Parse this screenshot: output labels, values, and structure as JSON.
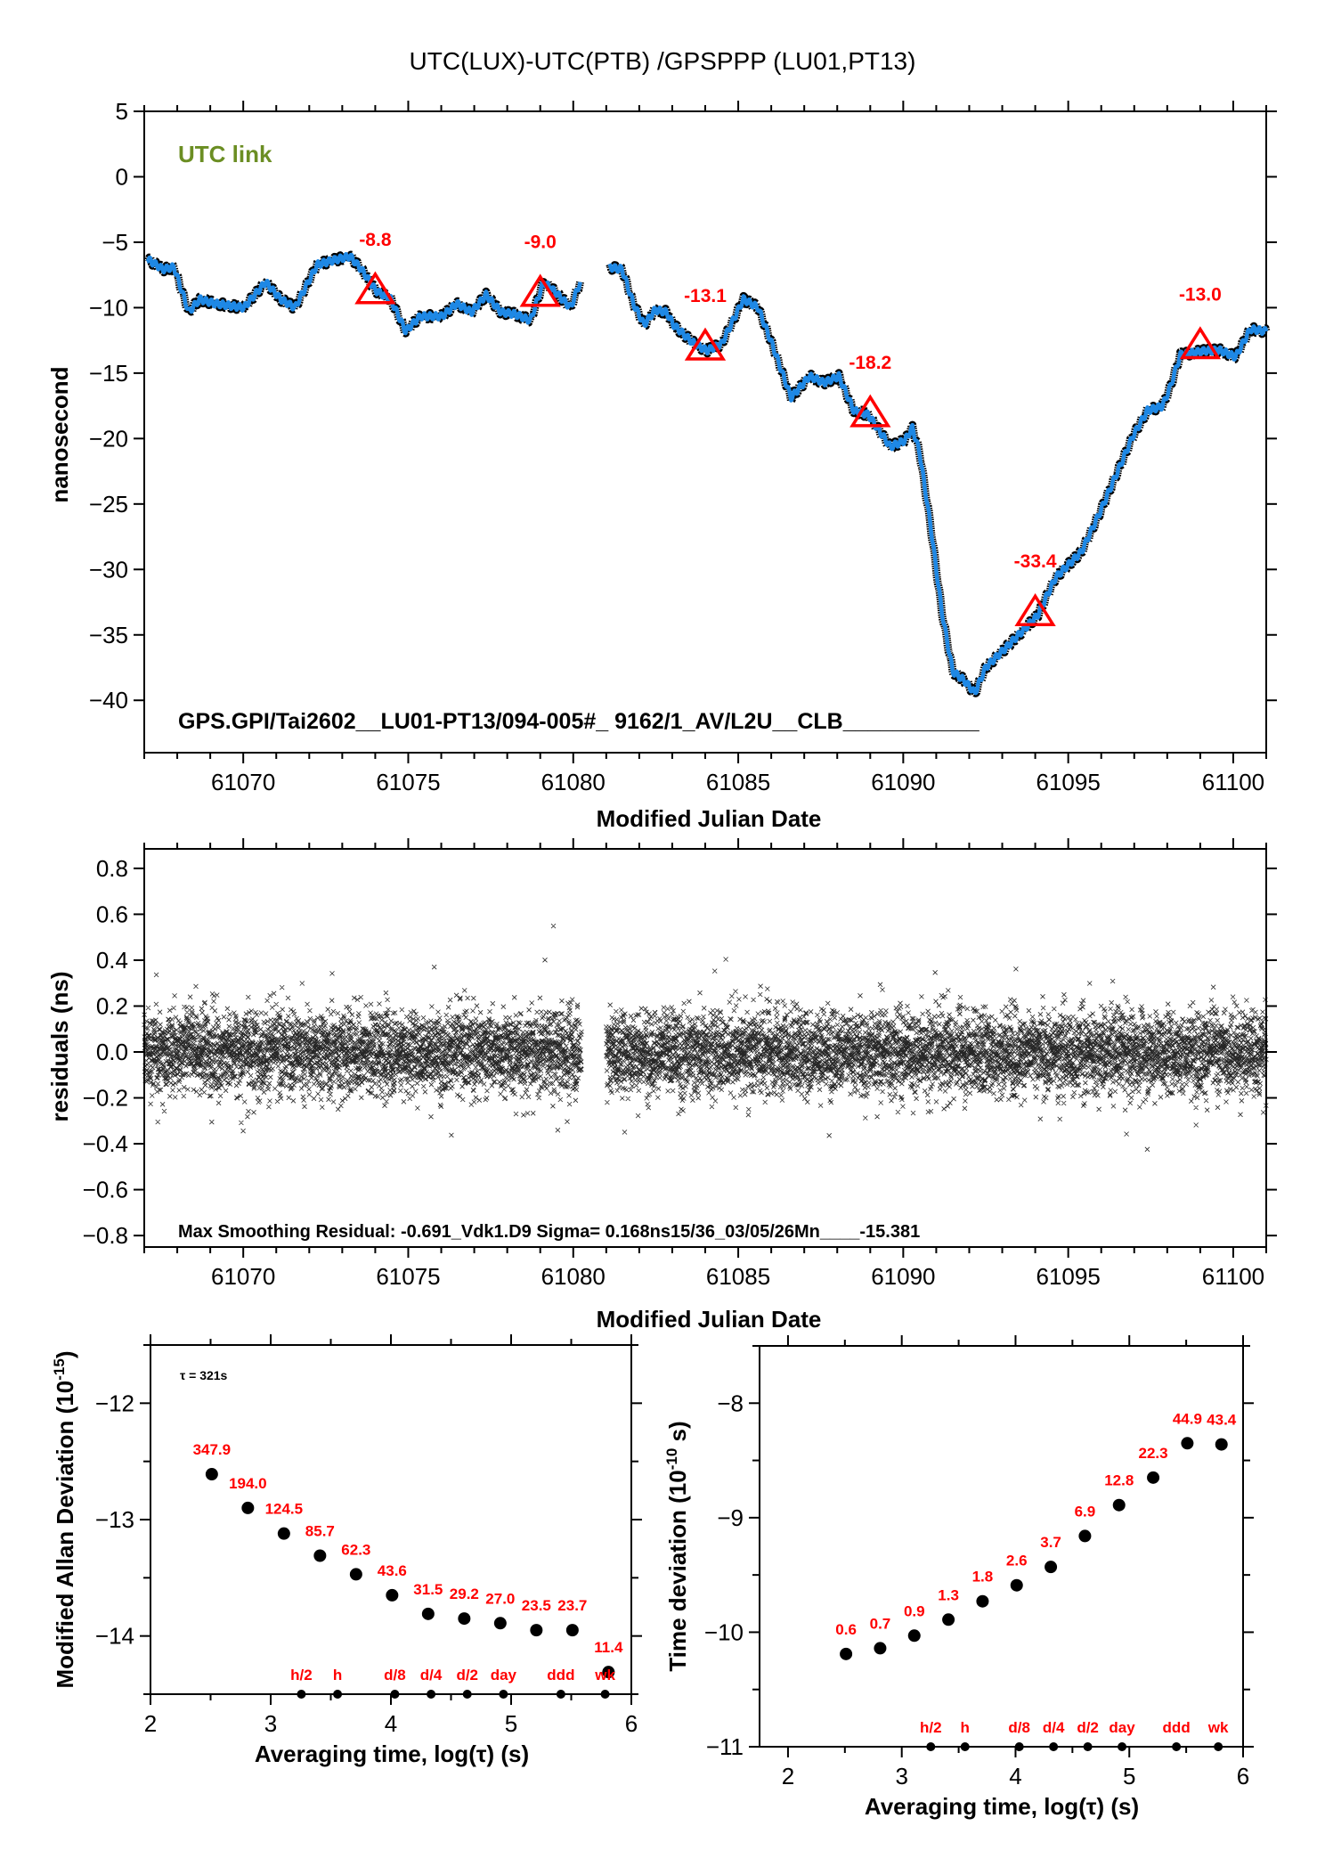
{
  "page_title": "UTC(LUX)-UTC(PTB)  /GPSPPP  (LU01,PT13)",
  "colors": {
    "series_line": "#1e88e5",
    "raw_points": "#000000",
    "markers": "#ff0000",
    "link_label": "#6b8e23"
  },
  "chart_data": [
    {
      "id": "time-series",
      "type": "line",
      "title": "UTC(LUX)-UTC(PTB)  /GPSPPP  (LU01,PT13)",
      "xlabel": "Modified Julian Date",
      "ylabel": "nanosecond",
      "xlim": [
        61067,
        61101
      ],
      "ylim": [
        -44,
        5
      ],
      "xticks": [
        61070,
        61075,
        61080,
        61085,
        61090,
        61095,
        61100
      ],
      "xtick_labels": [
        "61070",
        "61075",
        "61080",
        "61085",
        "61090",
        "61095",
        "61100"
      ],
      "yticks": [
        5,
        0,
        -5,
        -10,
        -15,
        -20,
        -25,
        -30,
        -35,
        -40
      ],
      "ytick_labels": [
        "5",
        "0",
        "−5",
        "−10",
        "−15",
        "−20",
        "−25",
        "−30",
        "−35",
        "−40"
      ],
      "annotation_top": "UTC link",
      "annotation_bottom": "GPS.GPI/Tai2602__LU01-PT13/094-005#_  9162/1_AV/L2U__CLB___________",
      "segments": [
        [
          [
            61067.08,
            -6.25
          ],
          [
            61067.57,
            -7.07
          ],
          [
            61067.9,
            -6.9
          ],
          [
            61068.35,
            -10.34
          ],
          [
            61068.68,
            -9.35
          ],
          [
            61069.13,
            -9.68
          ],
          [
            61070.02,
            -10.0
          ],
          [
            61070.68,
            -8.04
          ],
          [
            61071.13,
            -9.35
          ],
          [
            61071.57,
            -10.0
          ],
          [
            61072.24,
            -6.72
          ],
          [
            61072.69,
            -6.4
          ],
          [
            61073.24,
            -6.08
          ],
          [
            61073.58,
            -7.07
          ],
          [
            61074.02,
            -8.7
          ],
          [
            61074.47,
            -9.35
          ],
          [
            61074.92,
            -11.8
          ],
          [
            61075.36,
            -10.66
          ],
          [
            61076.03,
            -10.66
          ],
          [
            61076.47,
            -9.68
          ],
          [
            61076.92,
            -10.34
          ],
          [
            61077.36,
            -9.02
          ],
          [
            61077.81,
            -10.34
          ],
          [
            61078.25,
            -10.5
          ],
          [
            61078.7,
            -10.99
          ],
          [
            61079.1,
            -8.04
          ],
          [
            61079.48,
            -8.86
          ],
          [
            61079.92,
            -10.0
          ],
          [
            61080.21,
            -8.04
          ]
        ],
        [
          [
            61081.1,
            -6.9
          ],
          [
            61081.48,
            -7.07
          ],
          [
            61081.82,
            -9.68
          ],
          [
            61082.15,
            -11.31
          ],
          [
            61082.48,
            -10.17
          ],
          [
            61082.82,
            -10.34
          ],
          [
            61083.04,
            -11.31
          ],
          [
            61083.6,
            -12.62
          ],
          [
            61084.04,
            -13.28
          ],
          [
            61084.49,
            -12.79
          ],
          [
            61085.16,
            -9.35
          ],
          [
            61085.6,
            -10.0
          ],
          [
            61086.05,
            -12.95
          ],
          [
            61086.6,
            -16.87
          ],
          [
            61087.16,
            -15.24
          ],
          [
            61087.6,
            -15.73
          ],
          [
            61088.05,
            -15.24
          ],
          [
            61088.5,
            -17.86
          ],
          [
            61088.94,
            -18.18
          ],
          [
            61089.61,
            -20.63
          ],
          [
            61090.05,
            -20.15
          ],
          [
            61090.28,
            -19.17
          ],
          [
            61090.5,
            -21.13
          ],
          [
            61090.83,
            -26.68
          ],
          [
            61091.17,
            -33.23
          ],
          [
            61091.5,
            -37.8
          ],
          [
            61091.84,
            -38.46
          ],
          [
            61092.17,
            -39.44
          ],
          [
            61092.5,
            -37.48
          ],
          [
            61093.17,
            -35.84
          ],
          [
            61094.06,
            -33.55
          ],
          [
            61094.62,
            -30.61
          ],
          [
            61095.4,
            -28.65
          ],
          [
            61095.95,
            -25.7
          ],
          [
            61096.51,
            -22.44
          ],
          [
            61096.96,
            -19.82
          ],
          [
            61097.4,
            -17.86
          ],
          [
            61097.85,
            -17.53
          ],
          [
            61098.07,
            -16.22
          ],
          [
            61098.4,
            -13.6
          ],
          [
            61099.18,
            -13.28
          ],
          [
            61099.63,
            -13.28
          ],
          [
            61100.07,
            -13.77
          ],
          [
            61100.52,
            -11.64
          ],
          [
            61101.0,
            -11.8
          ]
        ]
      ],
      "markers": [
        {
          "x": 61074,
          "y": -8.8,
          "label": "-8.8"
        },
        {
          "x": 61079,
          "y": -9.0,
          "label": "-9.0"
        },
        {
          "x": 61084,
          "y": -13.1,
          "label": "-13.1"
        },
        {
          "x": 61089,
          "y": -18.2,
          "label": "-18.2"
        },
        {
          "x": 61094,
          "y": -33.4,
          "label": "-33.4"
        },
        {
          "x": 61099,
          "y": -13.0,
          "label": "-13.0"
        }
      ]
    },
    {
      "id": "residuals",
      "type": "scatter",
      "xlabel": "Modified Julian Date",
      "ylabel": "residuals (ns)",
      "xlim": [
        61067,
        61101
      ],
      "ylim": [
        -0.85,
        0.885
      ],
      "xticks": [
        61070,
        61075,
        61080,
        61085,
        61090,
        61095,
        61100
      ],
      "xtick_labels": [
        "61070",
        "61075",
        "61080",
        "61085",
        "61090",
        "61095",
        "61100"
      ],
      "yticks": [
        0.8,
        0.6,
        0.4,
        0.2,
        0.0,
        -0.2,
        -0.4,
        -0.6,
        -0.8
      ],
      "ytick_labels": [
        "0.8",
        "0.6",
        "0.4",
        "0.2",
        "0.0",
        "−0.2",
        "−0.4",
        "−0.6",
        "−0.8"
      ],
      "annotation": "Max Smoothing Residual: -0.691_Vdk1.D9  Sigma= 0.168ns15/36_03/05/26Mn____-15.381",
      "sigma_ns": 0.168,
      "max_residual_ns": -0.691,
      "data_ranges": [
        [
          61067.0,
          61080.25
        ],
        [
          61081.0,
          61101.0
        ]
      ],
      "sample_interval_days": 0.0037,
      "marker": "x"
    },
    {
      "id": "mod-allan-deviation",
      "type": "scatter",
      "xlabel": "Averaging time, log(τ) (s)",
      "ylabel": "Modified Allan Deviation (10",
      "ylabel_sup": "-15",
      "ylabel_end": ")",
      "xlim": [
        2,
        6
      ],
      "ylim": [
        -14.5,
        -11.5
      ],
      "xticks": [
        2,
        3,
        4,
        5,
        6
      ],
      "xtick_labels": [
        "2",
        "3",
        "4",
        "5",
        "6"
      ],
      "yticks": [
        -12,
        -13,
        -14
      ],
      "ytick_labels": [
        "−12",
        "−13",
        "−14"
      ],
      "tau_note": "τ = 321s",
      "points": [
        {
          "x": 2.51,
          "y": -12.61,
          "label": "347.9"
        },
        {
          "x": 2.81,
          "y": -12.9,
          "label": "194.0"
        },
        {
          "x": 3.11,
          "y": -13.12,
          "label": "124.5"
        },
        {
          "x": 3.41,
          "y": -13.31,
          "label": "85.7"
        },
        {
          "x": 3.71,
          "y": -13.47,
          "label": "62.3"
        },
        {
          "x": 4.01,
          "y": -13.65,
          "label": "43.6"
        },
        {
          "x": 4.31,
          "y": -13.81,
          "label": "31.5"
        },
        {
          "x": 4.61,
          "y": -13.85,
          "label": "29.2"
        },
        {
          "x": 4.91,
          "y": -13.89,
          "label": "27.0"
        },
        {
          "x": 5.21,
          "y": -13.95,
          "label": "23.5"
        },
        {
          "x": 5.51,
          "y": -13.95,
          "label": "23.7"
        },
        {
          "x": 5.81,
          "y": -14.31,
          "label": "11.4"
        }
      ],
      "time_markers": [
        {
          "x": 3.255,
          "label": "h/2"
        },
        {
          "x": 3.556,
          "label": "h"
        },
        {
          "x": 4.033,
          "label": "d/8"
        },
        {
          "x": 4.334,
          "label": "d/4"
        },
        {
          "x": 4.635,
          "label": "d/2"
        },
        {
          "x": 4.936,
          "label": "day"
        },
        {
          "x": 5.414,
          "label": "ddd"
        },
        {
          "x": 5.782,
          "label": "wk"
        }
      ]
    },
    {
      "id": "time-deviation",
      "type": "scatter",
      "xlabel": "Averaging time, log(τ) (s)",
      "ylabel": "Time deviation (10",
      "ylabel_sup": "-10",
      "ylabel_end": " s)",
      "xlim": [
        1.75,
        6
      ],
      "ylim": [
        -11,
        -7.5
      ],
      "xticks": [
        2,
        3,
        4,
        5,
        6
      ],
      "xtick_labels": [
        "2",
        "3",
        "4",
        "5",
        "6"
      ],
      "yticks": [
        -8,
        -9,
        -10,
        -11
      ],
      "ytick_labels": [
        "−8",
        "−9",
        "−10",
        "−11"
      ],
      "points": [
        {
          "x": 2.51,
          "y": -10.19,
          "label": "0.6"
        },
        {
          "x": 2.81,
          "y": -10.14,
          "label": "0.7"
        },
        {
          "x": 3.11,
          "y": -10.03,
          "label": "0.9"
        },
        {
          "x": 3.41,
          "y": -9.89,
          "label": "1.3"
        },
        {
          "x": 3.71,
          "y": -9.73,
          "label": "1.8"
        },
        {
          "x": 4.01,
          "y": -9.59,
          "label": "2.6"
        },
        {
          "x": 4.31,
          "y": -9.43,
          "label": "3.7"
        },
        {
          "x": 4.61,
          "y": -9.16,
          "label": "6.9"
        },
        {
          "x": 4.91,
          "y": -8.89,
          "label": "12.8"
        },
        {
          "x": 5.21,
          "y": -8.65,
          "label": "22.3"
        },
        {
          "x": 5.51,
          "y": -8.35,
          "label": "44.9"
        },
        {
          "x": 5.81,
          "y": -8.36,
          "label": "43.4"
        }
      ],
      "time_markers": [
        {
          "x": 3.255,
          "label": "h/2"
        },
        {
          "x": 3.556,
          "label": "h"
        },
        {
          "x": 4.033,
          "label": "d/8"
        },
        {
          "x": 4.334,
          "label": "d/4"
        },
        {
          "x": 4.635,
          "label": "d/2"
        },
        {
          "x": 4.936,
          "label": "day"
        },
        {
          "x": 5.414,
          "label": "ddd"
        },
        {
          "x": 5.782,
          "label": "wk"
        }
      ]
    }
  ]
}
